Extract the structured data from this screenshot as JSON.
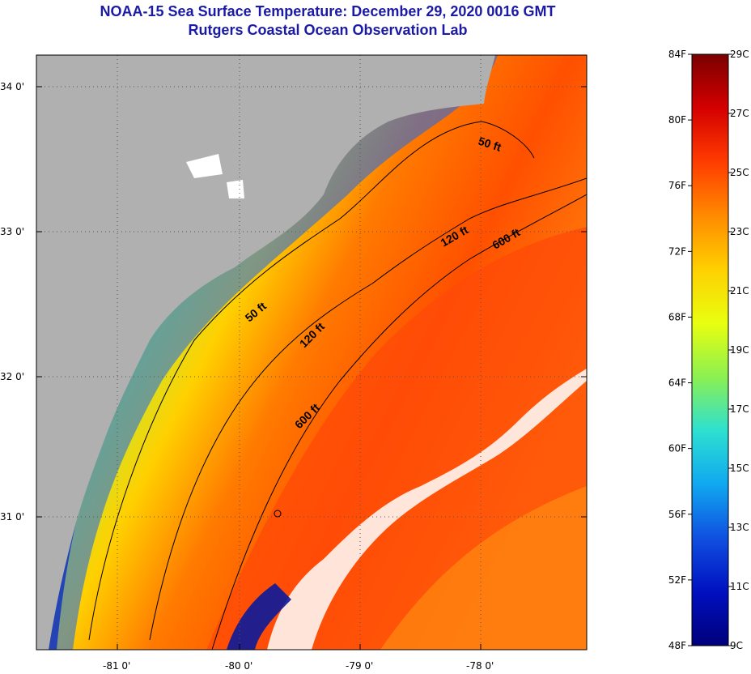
{
  "header": {
    "title": "NOAA-15 Sea Surface Temperature:  December 29, 2020 0016 GMT",
    "subtitle": "Rutgers Coastal Ocean Observation Lab"
  },
  "map": {
    "latitude_ticks": [
      "34 0'",
      "33 0'",
      "32 0'",
      "31 0'"
    ],
    "longitude_ticks": [
      "-81 0'",
      "-80 0'",
      "-79 0'",
      "-78 0'"
    ],
    "contours": [
      "50 ft",
      "120 ft",
      "600 ft"
    ],
    "colors": {
      "land": "#b0b0b0",
      "cloud": "#ffffff",
      "contour_line": "#000000"
    }
  },
  "colorbar": {
    "fahrenheit_labels": [
      "84F",
      "80F",
      "76F",
      "72F",
      "68F",
      "64F",
      "60F",
      "56F",
      "52F",
      "48F"
    ],
    "celsius_labels": [
      "29C",
      "27C",
      "25C",
      "23C",
      "21C",
      "19C",
      "17C",
      "15C",
      "13C",
      "11C",
      "9C"
    ],
    "gradient_colors": [
      "#7a0000",
      "#d40000",
      "#ff3c00",
      "#ff8a00",
      "#ffd000",
      "#e8ff10",
      "#8cf050",
      "#2ee0d0",
      "#10a8f0",
      "#1050e0",
      "#0010c0",
      "#00007a"
    ]
  }
}
